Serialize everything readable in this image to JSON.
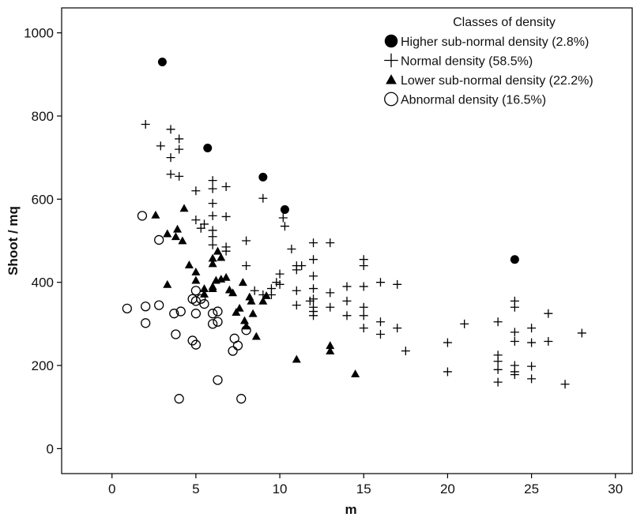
{
  "chart_data": {
    "type": "scatter",
    "title": "",
    "xlabel": "m",
    "ylabel": "Shoot / mq",
    "xlim": [
      -3,
      31
    ],
    "ylim": [
      -60,
      1060
    ],
    "x_ticks": [
      0,
      5,
      10,
      15,
      20,
      25,
      30
    ],
    "y_ticks": [
      0,
      200,
      400,
      600,
      800,
      1000
    ],
    "grid": false,
    "legend": {
      "title": "Classes of density",
      "placement": "top-right"
    },
    "series": [
      {
        "name": "Higher sub-normal density (2.8%)",
        "marker": "filled-circle",
        "color": "#000000",
        "points": [
          [
            3,
            930
          ],
          [
            5.7,
            723
          ],
          [
            9,
            653
          ],
          [
            10.3,
            575
          ],
          [
            24,
            455
          ]
        ]
      },
      {
        "name": "Normal density (58.5%)",
        "marker": "plus",
        "color": "#000000",
        "points": [
          [
            2,
            780
          ],
          [
            2.9,
            728
          ],
          [
            3.5,
            768
          ],
          [
            3.5,
            700
          ],
          [
            3.5,
            660
          ],
          [
            4,
            745
          ],
          [
            4,
            720
          ],
          [
            4,
            655
          ],
          [
            5,
            620
          ],
          [
            5,
            550
          ],
          [
            5.3,
            530
          ],
          [
            5.5,
            540
          ],
          [
            6,
            645
          ],
          [
            6,
            625
          ],
          [
            6,
            590
          ],
          [
            6,
            560
          ],
          [
            6,
            525
          ],
          [
            6,
            510
          ],
          [
            6,
            490
          ],
          [
            6.8,
            630
          ],
          [
            6.8,
            558
          ],
          [
            6.8,
            485
          ],
          [
            6.8,
            475
          ],
          [
            8,
            500
          ],
          [
            8,
            440
          ],
          [
            8.5,
            380
          ],
          [
            9,
            602
          ],
          [
            9,
            370
          ],
          [
            9.5,
            385
          ],
          [
            9.5,
            370
          ],
          [
            9.8,
            400
          ],
          [
            10,
            420
          ],
          [
            10,
            395
          ],
          [
            10.2,
            555
          ],
          [
            10.3,
            535
          ],
          [
            10.7,
            480
          ],
          [
            11,
            440
          ],
          [
            11,
            430
          ],
          [
            11,
            380
          ],
          [
            11,
            345
          ],
          [
            11.3,
            440
          ],
          [
            11.8,
            355
          ],
          [
            12,
            495
          ],
          [
            12,
            455
          ],
          [
            12,
            415
          ],
          [
            12,
            385
          ],
          [
            12,
            360
          ],
          [
            12,
            340
          ],
          [
            12,
            330
          ],
          [
            12,
            320
          ],
          [
            13,
            495
          ],
          [
            13,
            375
          ],
          [
            13,
            340
          ],
          [
            14,
            390
          ],
          [
            14,
            355
          ],
          [
            14,
            320
          ],
          [
            15,
            455
          ],
          [
            15,
            440
          ],
          [
            15,
            390
          ],
          [
            15,
            340
          ],
          [
            15,
            320
          ],
          [
            15,
            290
          ],
          [
            16,
            400
          ],
          [
            16,
            305
          ],
          [
            16,
            275
          ],
          [
            17,
            395
          ],
          [
            17,
            290
          ],
          [
            17.5,
            235
          ],
          [
            20,
            255
          ],
          [
            20,
            185
          ],
          [
            21,
            300
          ],
          [
            23,
            305
          ],
          [
            23,
            225
          ],
          [
            23,
            210
          ],
          [
            23,
            190
          ],
          [
            23,
            160
          ],
          [
            24,
            355
          ],
          [
            24,
            340
          ],
          [
            24,
            280
          ],
          [
            24,
            258
          ],
          [
            24,
            200
          ],
          [
            24,
            185
          ],
          [
            24,
            178
          ],
          [
            25,
            290
          ],
          [
            25,
            255
          ],
          [
            25,
            198
          ],
          [
            25,
            168
          ],
          [
            26,
            325
          ],
          [
            26,
            258
          ],
          [
            27,
            155
          ],
          [
            28,
            278
          ]
        ]
      },
      {
        "name": "Lower sub-normal density (22.2%)",
        "marker": "filled-triangle",
        "color": "#000000",
        "points": [
          [
            2.6,
            562
          ],
          [
            3.3,
            517
          ],
          [
            3.3,
            395
          ],
          [
            3.8,
            510
          ],
          [
            3.9,
            528
          ],
          [
            4.2,
            500
          ],
          [
            4.3,
            578
          ],
          [
            4.6,
            442
          ],
          [
            5,
            425
          ],
          [
            5,
            405
          ],
          [
            5.5,
            385
          ],
          [
            5.5,
            372
          ],
          [
            6,
            458
          ],
          [
            6,
            445
          ],
          [
            6,
            390
          ],
          [
            6,
            385
          ],
          [
            6.2,
            405
          ],
          [
            6.3,
            475
          ],
          [
            6.5,
            460
          ],
          [
            6.5,
            408
          ],
          [
            6.8,
            412
          ],
          [
            7,
            382
          ],
          [
            7.2,
            375
          ],
          [
            7.4,
            328
          ],
          [
            7.6,
            338
          ],
          [
            7.8,
            400
          ],
          [
            7.9,
            308
          ],
          [
            8,
            295
          ],
          [
            8.2,
            365
          ],
          [
            8.3,
            355
          ],
          [
            8.4,
            325
          ],
          [
            8.6,
            270
          ],
          [
            9,
            355
          ],
          [
            9.2,
            368
          ],
          [
            11,
            215
          ],
          [
            13,
            235
          ],
          [
            13,
            248
          ],
          [
            14.5,
            180
          ]
        ]
      },
      {
        "name": "Abnormal density (16.5%)",
        "marker": "hollow-circle",
        "color": "#000000",
        "points": [
          [
            0.9,
            337
          ],
          [
            1.8,
            560
          ],
          [
            2,
            342
          ],
          [
            2,
            302
          ],
          [
            2.8,
            502
          ],
          [
            2.8,
            345
          ],
          [
            3.7,
            325
          ],
          [
            3.8,
            275
          ],
          [
            4,
            120
          ],
          [
            4.1,
            330
          ],
          [
            4.8,
            260
          ],
          [
            4.8,
            360
          ],
          [
            5,
            380
          ],
          [
            5,
            355
          ],
          [
            5,
            325
          ],
          [
            5,
            250
          ],
          [
            5.3,
            360
          ],
          [
            5.5,
            348
          ],
          [
            6,
            300
          ],
          [
            6,
            325
          ],
          [
            6.3,
            330
          ],
          [
            6.3,
            305
          ],
          [
            6.3,
            165
          ],
          [
            7.2,
            235
          ],
          [
            7.3,
            265
          ],
          [
            7.5,
            248
          ],
          [
            7.7,
            120
          ],
          [
            8,
            285
          ]
        ]
      }
    ]
  }
}
